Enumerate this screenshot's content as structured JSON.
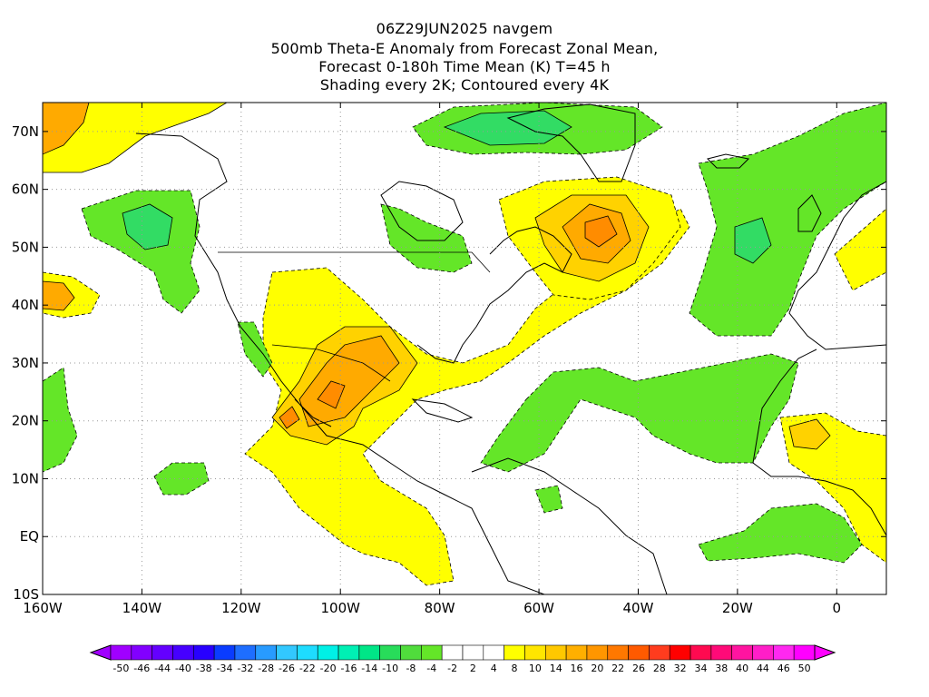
{
  "header": {
    "line1": "06Z29JUN2025 navgem",
    "line2": "500mb Theta-E Anomaly from Forecast Zonal Mean,",
    "line3": "Forecast 0-180h Time Mean (K) T=45 h",
    "line4": "Shading every 2K; Contoured every 4K"
  },
  "axes": {
    "lat_ticks": [
      "70N",
      "60N",
      "50N",
      "40N",
      "30N",
      "20N",
      "10N",
      "EQ",
      "10S"
    ],
    "lon_ticks": [
      "160W",
      "140W",
      "120W",
      "100W",
      "80W",
      "60W",
      "40W",
      "20W",
      "0"
    ],
    "lat_values": [
      70,
      60,
      50,
      40,
      30,
      20,
      10,
      0,
      -10
    ],
    "lon_values": [
      -160,
      -140,
      -120,
      -100,
      -80,
      -60,
      -40,
      -20,
      0
    ],
    "lat_range": [
      -10,
      75
    ],
    "lon_range": [
      -160,
      10
    ]
  },
  "colorbar": {
    "labels": [
      "-50",
      "-46",
      "-44",
      "-40",
      "-38",
      "-34",
      "-32",
      "-28",
      "-26",
      "-22",
      "-20",
      "-16",
      "-14",
      "-10",
      "-8",
      "-4",
      "-2",
      "2",
      "4",
      "8",
      "10",
      "14",
      "16",
      "20",
      "22",
      "26",
      "28",
      "32",
      "34",
      "38",
      "40",
      "44",
      "46",
      "50"
    ],
    "colors": [
      "#a000ff",
      "#8200ff",
      "#6400ff",
      "#4600ff",
      "#2800ff",
      "#0a3cff",
      "#1e6eff",
      "#289bff",
      "#32c8ff",
      "#1edcff",
      "#00f0e6",
      "#00f0b4",
      "#00e687",
      "#28dc5a",
      "#50dc3c",
      "#64e628",
      "#ffffff",
      "#ffffff",
      "#ffffff",
      "#ffff00",
      "#ffe600",
      "#ffc800",
      "#ffaf00",
      "#ff9600",
      "#ff7800",
      "#ff5a00",
      "#ff3c1e",
      "#ff0000",
      "#ff0a50",
      "#ff0a78",
      "#ff14a0",
      "#ff1ec8",
      "#ff28f0",
      "#ff00ff"
    ]
  },
  "field": {
    "colors": {
      "pos1": "#ffff00",
      "pos2": "#ffd200",
      "pos3": "#ffaa00",
      "pos4": "#ff8c00",
      "neg1": "#64e628",
      "neg2": "#32dc64",
      "neg3": "#3cdcaa"
    }
  }
}
